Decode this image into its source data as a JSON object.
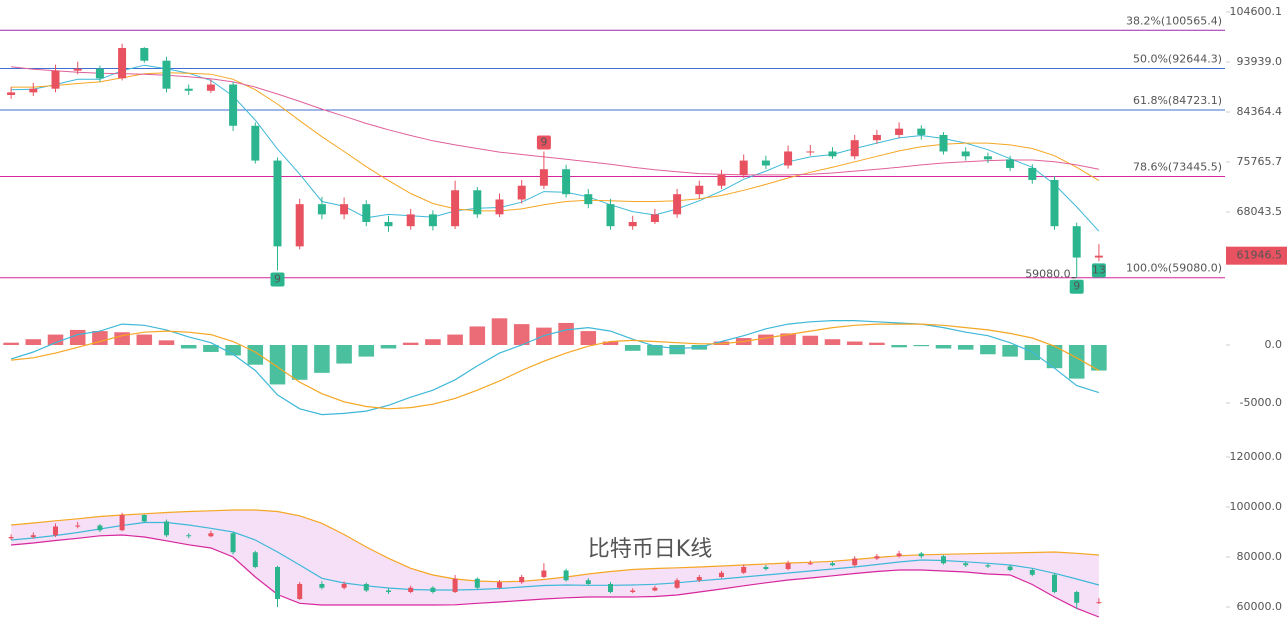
{
  "chart_data": [
    {
      "type": "candlestick",
      "log_scale": true,
      "up_color": "#e8515f",
      "down_color": "#2bb58e",
      "ylim": [
        57540,
        107330
      ],
      "yticks": [
        104600.1,
        {
          "value": 93939,
          "label": "93939.0"
        },
        84364.4,
        75765.7,
        68043.5
      ],
      "open": [
        87500,
        88000,
        88700,
        92200,
        92600,
        90700,
        96800,
        94200,
        88700,
        88300,
        89500,
        81900,
        76000,
        63200,
        69200,
        67700,
        69200,
        66600,
        66000,
        67700,
        66000,
        71300,
        67700,
        69900,
        72000,
        74600,
        70700,
        69200,
        66000,
        66600,
        67700,
        70700,
        72000,
        73700,
        76000,
        75200,
        77500,
        77500,
        76700,
        79400,
        80300,
        81400,
        80300,
        77500,
        76700,
        76200,
        74800,
        72900,
        66000,
        61700
      ],
      "high": [
        89000,
        89800,
        93400,
        94000,
        93200,
        97700,
        97000,
        95000,
        89500,
        90500,
        90000,
        82500,
        76500,
        70000,
        70300,
        70200,
        69800,
        67500,
        68500,
        68300,
        72800,
        71800,
        70800,
        72900,
        77500,
        75300,
        71500,
        70000,
        67500,
        68500,
        71500,
        72800,
        74500,
        77000,
        76800,
        78500,
        78600,
        78200,
        80300,
        81200,
        82500,
        82000,
        80800,
        78200,
        77300,
        76800,
        75400,
        73500,
        66500,
        63500
      ],
      "low": [
        86800,
        87300,
        88000,
        91500,
        90000,
        90300,
        93800,
        88000,
        87500,
        87900,
        81000,
        75500,
        60000,
        62800,
        67000,
        67000,
        66000,
        65200,
        65500,
        65400,
        65600,
        67200,
        67300,
        69300,
        71500,
        70200,
        68600,
        65500,
        65500,
        66300,
        67200,
        70000,
        71500,
        73200,
        74600,
        74700,
        76800,
        76300,
        76200,
        78800,
        79800,
        79500,
        77000,
        76000,
        75600,
        74300,
        72300,
        65500,
        59080,
        61200
      ],
      "close": [
        88000,
        88700,
        92200,
        92600,
        90700,
        96800,
        94200,
        88700,
        88300,
        89500,
        81900,
        76000,
        63200,
        69200,
        67700,
        69200,
        66600,
        66000,
        67700,
        66000,
        71300,
        67700,
        69900,
        72000,
        74600,
        70700,
        69200,
        66000,
        66600,
        67700,
        70700,
        72000,
        73700,
        76000,
        75200,
        77500,
        77500,
        76700,
        79400,
        80300,
        81400,
        80300,
        77500,
        76700,
        76200,
        74800,
        72900,
        66000,
        61700,
        61946.5
      ],
      "series": [
        {
          "color": "#3fb8d8",
          "values": [
            88500,
            88600,
            89500,
            90500,
            90500,
            92200,
            93300,
            92600,
            91700,
            90300,
            87300,
            82900,
            77900,
            73800,
            69600,
            68900,
            67200,
            67700,
            67500,
            67300,
            68200,
            68600,
            68700,
            69500,
            71100,
            71000,
            70300,
            69100,
            68100,
            67600,
            68500,
            69700,
            71200,
            73000,
            74300,
            75800,
            76600,
            77000,
            78000,
            78900,
            79800,
            80200,
            79700,
            78900,
            77800,
            76300,
            74900,
            72200,
            68800,
            65300
          ]
        },
        {
          "color": "#f5a623",
          "values": [
            89000,
            89000,
            89300,
            89700,
            90000,
            90800,
            91600,
            91800,
            91700,
            91500,
            90500,
            88500,
            85800,
            82800,
            80000,
            77500,
            75000,
            72800,
            70800,
            69300,
            68500,
            68200,
            68200,
            68500,
            69100,
            69600,
            69800,
            69700,
            69600,
            69600,
            69700,
            70000,
            70500,
            71300,
            72200,
            73200,
            74100,
            74900,
            75800,
            76700,
            77600,
            78300,
            78700,
            78900,
            78900,
            78600,
            78000,
            76800,
            74900,
            72800
          ]
        },
        {
          "color": "#e0609a",
          "values": [
            93000,
            92500,
            92200,
            91900,
            91700,
            91600,
            91500,
            91300,
            91000,
            90600,
            90000,
            89000,
            87700,
            86300,
            84900,
            83600,
            82300,
            81200,
            80200,
            79300,
            78600,
            78000,
            77400,
            77000,
            76600,
            76200,
            75800,
            75400,
            74900,
            74500,
            74200,
            73900,
            73800,
            73700,
            73700,
            73700,
            73800,
            74000,
            74300,
            74600,
            74900,
            75300,
            75600,
            75800,
            76000,
            76100,
            76100,
            75800,
            75300,
            74600
          ]
        }
      ],
      "fib_levels": [
        {
          "label": "38.2%(100565.4)",
          "value": 100565.4,
          "color": "#9c27b0"
        },
        {
          "label": "50.0%(92644.3)",
          "value": 92644.3,
          "color": "#3f6fd1"
        },
        {
          "label": "61.8%(84723.1)",
          "value": 84723.1,
          "color": "#3f6fd1"
        },
        {
          "label": "78.6%(73445.5)",
          "value": 73445.5,
          "color": "#d6279c"
        },
        {
          "label": "100.0%(59080.0)",
          "value": 59080,
          "color": "#d6279c"
        }
      ],
      "last_price": 61946.5,
      "low_label": {
        "value": 59080,
        "label": "59080.0",
        "index": 48
      },
      "markers": [
        {
          "index": 12,
          "label": "9",
          "position": "below",
          "color": "#2bb58e"
        },
        {
          "index": 24,
          "label": "9",
          "position": "above",
          "color": "#e8515f"
        },
        {
          "index": 48,
          "label": "9",
          "position": "below",
          "color": "#2bb58e"
        },
        {
          "index": 49,
          "label": "13",
          "position": "below",
          "color": "#2bb58e"
        }
      ]
    },
    {
      "type": "macd",
      "up_color": "#e8515f",
      "down_color": "#2bb58e",
      "ylim": [
        -8190,
        3880
      ],
      "yticks": [
        {
          "value": 0,
          "label": "0.0"
        },
        {
          "value": -5000,
          "label": "-5000.0"
        }
      ],
      "histogram": [
        200,
        500,
        900,
        1300,
        1200,
        1100,
        900,
        400,
        -300,
        -600,
        -900,
        -1700,
        -3400,
        -3000,
        -2400,
        -1600,
        -1000,
        -300,
        200,
        500,
        900,
        1600,
        2300,
        1800,
        1500,
        1900,
        1200,
        300,
        -500,
        -900,
        -800,
        -400,
        300,
        600,
        900,
        1000,
        800,
        500,
        300,
        200,
        -200,
        -100,
        -300,
        -400,
        -800,
        -1000,
        -1300,
        -2000,
        -2900,
        -2200
      ],
      "series": [
        {
          "color": "#3fb8d8",
          "values": [
            -1200,
            -600,
            200,
            900,
            1200,
            1800,
            1700,
            1300,
            700,
            200,
            -800,
            -2200,
            -4300,
            -5500,
            -6000,
            -5900,
            -5700,
            -5200,
            -4500,
            -3900,
            -3000,
            -1800,
            -700,
            0,
            800,
            1300,
            1500,
            1200,
            500,
            -100,
            -300,
            -200,
            300,
            800,
            1400,
            1800,
            2000,
            2100,
            2100,
            2000,
            1900,
            1800,
            1500,
            1100,
            800,
            200,
            -600,
            -2000,
            -3500,
            -4100
          ]
        },
        {
          "color": "#f5a623",
          "values": [
            -1300,
            -1100,
            -700,
            -200,
            300,
            800,
            1100,
            1200,
            1100,
            900,
            300,
            -600,
            -1900,
            -3200,
            -4200,
            -4900,
            -5300,
            -5500,
            -5400,
            -5100,
            -4600,
            -3900,
            -3100,
            -2200,
            -1400,
            -700,
            -100,
            300,
            400,
            300,
            200,
            100,
            100,
            300,
            600,
            900,
            1200,
            1500,
            1700,
            1800,
            1800,
            1800,
            1700,
            1500,
            1300,
            1000,
            600,
            -100,
            -1100,
            -2200
          ]
        }
      ]
    },
    {
      "type": "bollinger",
      "band_fill": "#f6e0f8",
      "ylim": [
        55600,
        122800
      ],
      "yticks": [
        {
          "value": 120000,
          "label": "120000.0"
        },
        {
          "value": 100000,
          "label": "100000.0"
        },
        {
          "value": 80000,
          "label": "80000.0"
        },
        {
          "value": 60000,
          "label": "60000.0"
        }
      ],
      "annotation": {
        "text": "比特币日K线",
        "color": "#e8515f"
      },
      "series": [
        {
          "color": "#f5a623",
          "values": [
            92800,
            93600,
            94500,
            95300,
            96200,
            96800,
            97300,
            97800,
            98200,
            98500,
            98800,
            98800,
            98200,
            96500,
            93500,
            89000,
            84000,
            79500,
            75500,
            72800,
            71200,
            70400,
            70100,
            70300,
            71000,
            72000,
            73200,
            74200,
            75000,
            75400,
            75700,
            76000,
            76400,
            76800,
            77200,
            77600,
            77900,
            78300,
            79000,
            79800,
            80500,
            80900,
            81100,
            81300,
            81500,
            81600,
            81800,
            82000,
            81500,
            80800
          ]
        },
        {
          "color": "#3fb8d8",
          "values": [
            86800,
            87600,
            88600,
            89800,
            91200,
            92600,
            93800,
            93800,
            92800,
            91500,
            90000,
            86800,
            82000,
            76800,
            71500,
            69600,
            68500,
            67600,
            67000,
            66800,
            66800,
            67000,
            67400,
            68000,
            68600,
            68800,
            68700,
            68700,
            68800,
            69100,
            69700,
            70500,
            71200,
            72000,
            72800,
            73600,
            74400,
            75200,
            76000,
            77000,
            78000,
            78800,
            78600,
            78100,
            77500,
            76800,
            75500,
            73500,
            71200,
            68800
          ]
        },
        {
          "color": "#d6279c",
          "values": [
            84800,
            85600,
            86600,
            87500,
            88500,
            88800,
            88000,
            86500,
            84900,
            83600,
            80000,
            72000,
            65000,
            61500,
            60800,
            60800,
            60800,
            60800,
            60800,
            60800,
            60900,
            61500,
            62000,
            62600,
            63200,
            63700,
            64000,
            64000,
            64000,
            64200,
            64800,
            66000,
            67200,
            68500,
            69700,
            70800,
            71600,
            72500,
            73400,
            74200,
            74800,
            74800,
            74400,
            74000,
            73200,
            72800,
            69000,
            64000,
            59500,
            56000
          ]
        }
      ]
    }
  ]
}
